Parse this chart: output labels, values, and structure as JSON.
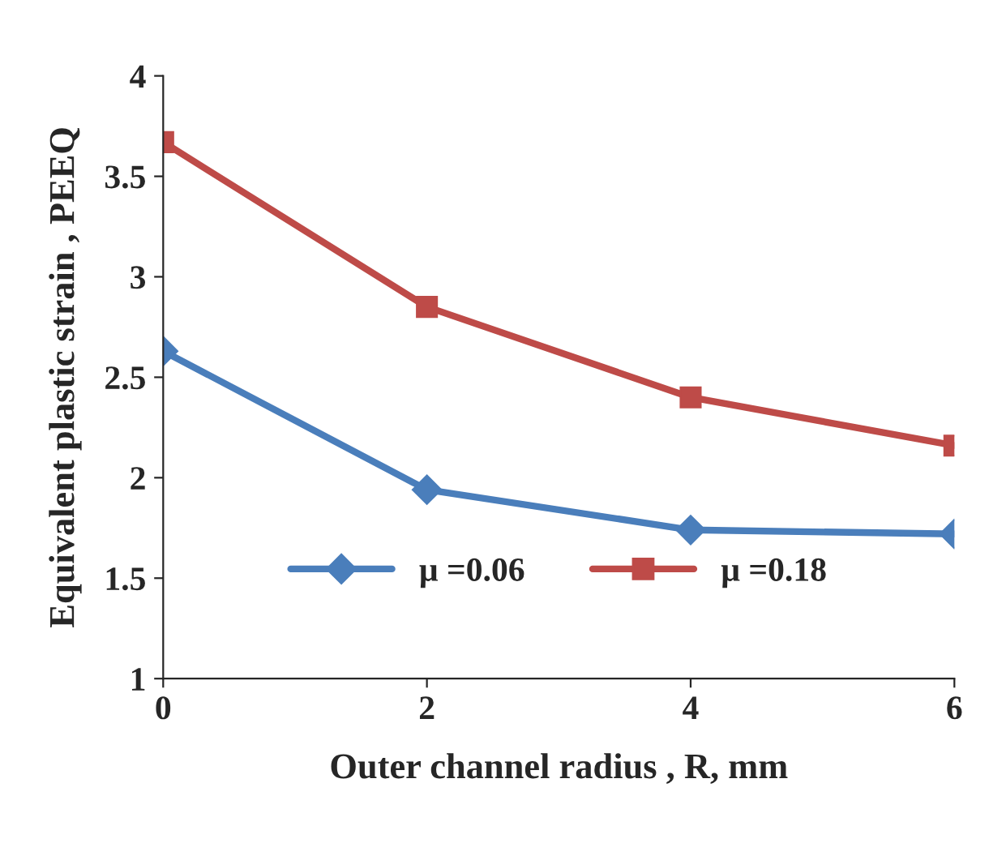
{
  "chart_data": {
    "type": "line",
    "xlabel": "Outer channel radius , R, mm",
    "ylabel": "Equivalent plastic strain , PEEQ",
    "x": [
      0,
      2,
      4,
      6
    ],
    "series": [
      {
        "name": "μ =0.06",
        "color": "#4a7ebb",
        "values": [
          2.63,
          1.94,
          1.74,
          1.72
        ],
        "marker": "diamond"
      },
      {
        "name": "μ =0.18",
        "color": "#be4b48",
        "values": [
          3.67,
          2.85,
          2.4,
          2.16
        ],
        "marker": "square"
      }
    ],
    "xlim": [
      0,
      6
    ],
    "xticks": [
      0,
      2,
      4,
      6
    ],
    "ylim": [
      1,
      4
    ],
    "yticks": [
      1,
      1.5,
      2,
      2.5,
      3,
      3.5,
      4
    ],
    "grid": false,
    "legend": "bottom",
    "line_style": "solid"
  }
}
